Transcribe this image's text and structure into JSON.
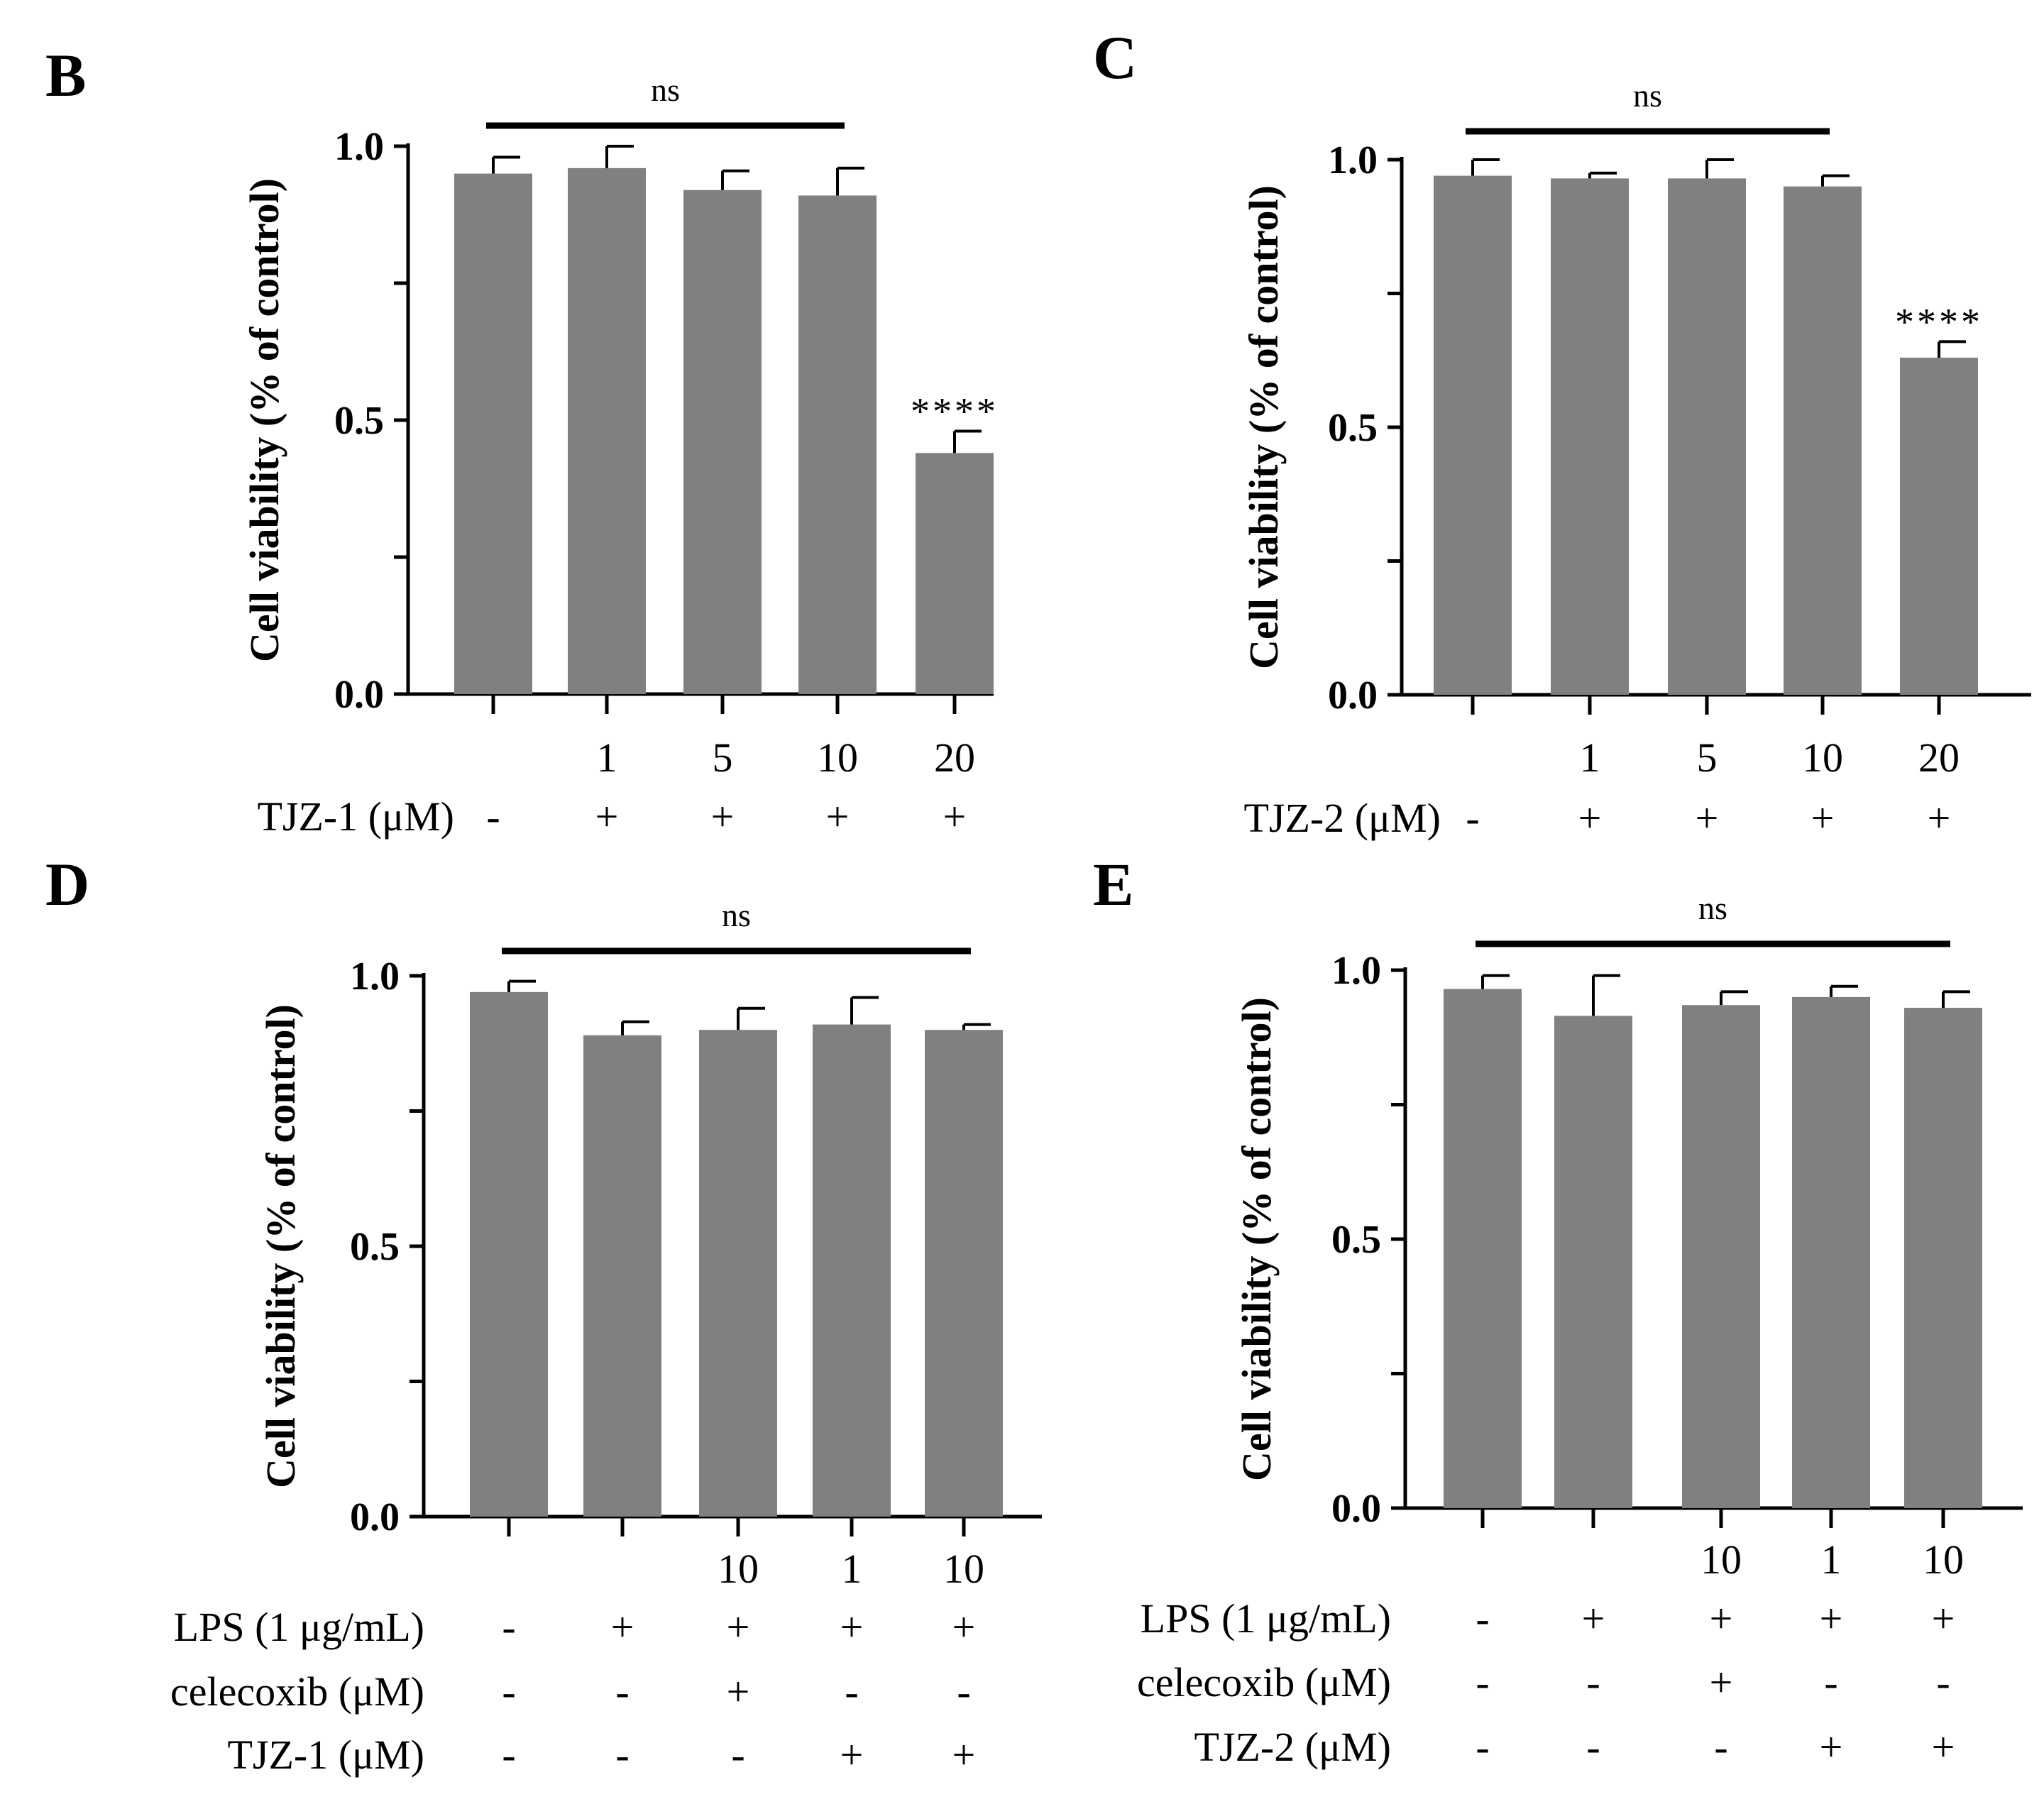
{
  "figure": {
    "colors": {
      "bar": "#808080",
      "axis": "#000000",
      "background": "#ffffff"
    }
  },
  "chart_data": [
    {
      "panel": "B",
      "type": "bar",
      "ylabel": "Cell viability (% of control)",
      "ylim": [
        0,
        1.0
      ],
      "yticks": [
        "0.0",
        "0.5",
        "1.0"
      ],
      "values": [
        0.95,
        0.96,
        0.92,
        0.91,
        0.44
      ],
      "errors": [
        0.03,
        0.04,
        0.035,
        0.05,
        0.04
      ],
      "categories": [
        "",
        "1",
        "5",
        "10",
        "20"
      ],
      "conditions": [
        {
          "label": "TJZ-1 (μM)",
          "marks": [
            "-",
            "+",
            "+",
            "+",
            "+"
          ]
        }
      ],
      "significance": {
        "label": "ns",
        "from": 0,
        "to": 3
      },
      "annotations": [
        {
          "bar": 4,
          "text": "****"
        }
      ]
    },
    {
      "panel": "C",
      "type": "bar",
      "ylabel": "Cell viability (% of control)",
      "ylim": [
        0,
        1.0
      ],
      "yticks": [
        "0.0",
        "0.5",
        "1.0"
      ],
      "values": [
        0.97,
        0.965,
        0.965,
        0.95,
        0.63
      ],
      "errors": [
        0.03,
        0.01,
        0.035,
        0.02,
        0.03
      ],
      "categories": [
        "",
        "1",
        "5",
        "10",
        "20"
      ],
      "conditions": [
        {
          "label": "TJZ-2 (μM)",
          "marks": [
            "-",
            "+",
            "+",
            "+",
            "+"
          ]
        }
      ],
      "significance": {
        "label": "ns",
        "from": 0,
        "to": 3
      },
      "annotations": [
        {
          "bar": 4,
          "text": "****"
        }
      ]
    },
    {
      "panel": "D",
      "type": "bar",
      "ylabel": "Cell viability (% of control)",
      "ylim": [
        0,
        1.0
      ],
      "yticks": [
        "0.0",
        "0.5",
        "1.0"
      ],
      "values": [
        0.97,
        0.89,
        0.9,
        0.91,
        0.9
      ],
      "errors": [
        0.02,
        0.025,
        0.04,
        0.05,
        0.01
      ],
      "categories": [
        "",
        "",
        "10",
        "1",
        "10"
      ],
      "conditions": [
        {
          "label": "LPS (1 μg/mL)",
          "marks": [
            "-",
            "+",
            "+",
            "+",
            "+"
          ]
        },
        {
          "label": "celecoxib (μM)",
          "marks": [
            "-",
            "-",
            "+",
            "-",
            "-"
          ]
        },
        {
          "label": "TJZ-1 (μM)",
          "marks": [
            "-",
            "-",
            "-",
            "+",
            "+"
          ]
        }
      ],
      "significance": {
        "label": "ns",
        "from": 0,
        "to": 4
      },
      "annotations": []
    },
    {
      "panel": "E",
      "type": "bar",
      "ylabel": "Cell viability (% of control)",
      "ylim": [
        0,
        1.0
      ],
      "yticks": [
        "0.0",
        "0.5",
        "1.0"
      ],
      "values": [
        0.965,
        0.915,
        0.935,
        0.95,
        0.93
      ],
      "errors": [
        0.025,
        0.075,
        0.025,
        0.02,
        0.03
      ],
      "categories": [
        "",
        "",
        "10",
        "1",
        "10"
      ],
      "conditions": [
        {
          "label": "LPS (1 μg/mL)",
          "marks": [
            "-",
            "+",
            "+",
            "+",
            "+"
          ]
        },
        {
          "label": "celecoxib (μM)",
          "marks": [
            "-",
            "-",
            "+",
            "-",
            "-"
          ]
        },
        {
          "label": "TJZ-2 (μM)",
          "marks": [
            "-",
            "-",
            "-",
            "+",
            "+"
          ]
        }
      ],
      "significance": {
        "label": "ns",
        "from": 0,
        "to": 4
      },
      "annotations": []
    }
  ]
}
